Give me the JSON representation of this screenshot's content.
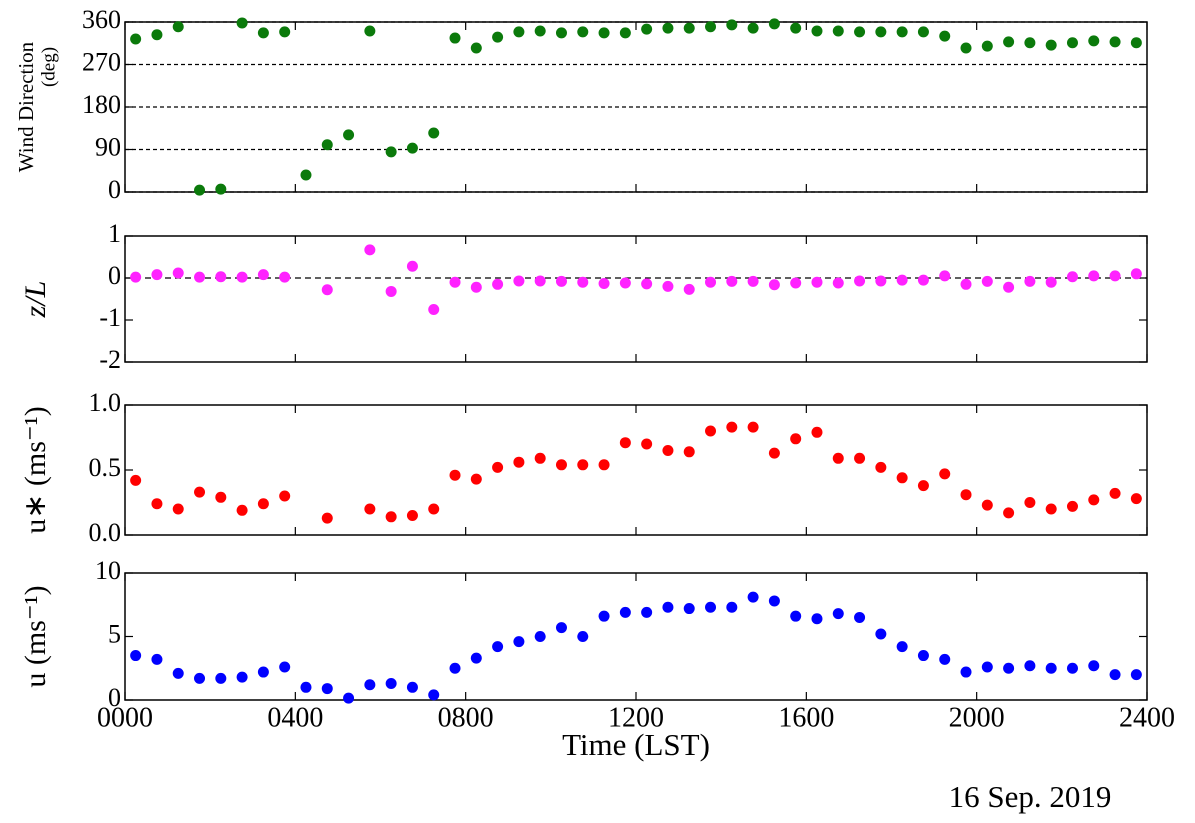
{
  "chart_data": [
    {
      "type": "scatter",
      "ylabel": "Wind Direction",
      "yunit": "(deg)",
      "color": "#0b7a0b",
      "grid": true,
      "x": [
        0.25,
        0.75,
        1.25,
        1.75,
        2.25,
        2.75,
        3.25,
        3.75,
        4.25,
        4.75,
        5.25,
        5.75,
        6.25,
        6.75,
        7.25,
        7.75,
        8.25,
        8.75,
        9.25,
        9.75,
        10.25,
        10.75,
        11.25,
        11.75,
        12.25,
        12.75,
        13.25,
        13.75,
        14.25,
        14.75,
        15.25,
        15.75,
        16.25,
        16.75,
        17.25,
        17.75,
        18.25,
        18.75,
        19.25,
        19.75,
        20.25,
        20.75,
        21.25,
        21.75,
        22.25,
        22.75,
        23.25,
        23.75
      ],
      "values": [
        324,
        333,
        350,
        4,
        6,
        358,
        337,
        339,
        36,
        100,
        121,
        341,
        85,
        93,
        125,
        326,
        305,
        328,
        339,
        341,
        337,
        339,
        337,
        337,
        345,
        347,
        347,
        350,
        354,
        347,
        356,
        347,
        341,
        341,
        339,
        339,
        339,
        339,
        330,
        305,
        309,
        318,
        316,
        311,
        316,
        320,
        318,
        316
      ],
      "xlim": [
        0,
        24
      ],
      "ylim": [
        0,
        360
      ],
      "yticks": [
        0,
        90,
        180,
        270,
        360
      ]
    },
    {
      "type": "scatter",
      "ylabel": "z/L",
      "color": "#ff22ff",
      "zero_line": true,
      "x": [
        0.25,
        0.75,
        1.25,
        1.75,
        2.25,
        2.75,
        3.25,
        3.75,
        4.25,
        4.75,
        5.25,
        5.75,
        6.25,
        6.75,
        7.25,
        7.75,
        8.25,
        8.75,
        9.25,
        9.75,
        10.25,
        10.75,
        11.25,
        11.75,
        12.25,
        12.75,
        13.25,
        13.75,
        14.25,
        14.75,
        15.25,
        15.75,
        16.25,
        16.75,
        17.25,
        17.75,
        18.25,
        18.75,
        19.25,
        19.75,
        20.25,
        20.75,
        21.25,
        21.75,
        22.25,
        22.75,
        23.25,
        23.75
      ],
      "values": [
        0.02,
        0.08,
        0.12,
        0.02,
        0.03,
        0.02,
        0.08,
        0.02,
        null,
        -0.28,
        null,
        0.67,
        -0.32,
        0.28,
        -0.75,
        -0.1,
        -0.22,
        -0.15,
        -0.07,
        -0.07,
        -0.08,
        -0.1,
        -0.13,
        -0.12,
        -0.14,
        -0.2,
        -0.27,
        -0.1,
        -0.08,
        -0.08,
        -0.16,
        -0.12,
        -0.1,
        -0.12,
        -0.07,
        -0.07,
        -0.05,
        -0.05,
        0.05,
        -0.15,
        -0.08,
        -0.22,
        -0.08,
        -0.1,
        0.03,
        0.05,
        0.05,
        0.1
      ],
      "xlim": [
        0,
        24
      ],
      "ylim": [
        -2,
        1
      ],
      "yticks": [
        -2,
        -1,
        0,
        1
      ]
    },
    {
      "type": "scatter",
      "ylabel": "u∗ (ms⁻¹)",
      "color": "#ff0000",
      "x": [
        0.25,
        0.75,
        1.25,
        1.75,
        2.25,
        2.75,
        3.25,
        3.75,
        4.25,
        4.75,
        5.25,
        5.75,
        6.25,
        6.75,
        7.25,
        7.75,
        8.25,
        8.75,
        9.25,
        9.75,
        10.25,
        10.75,
        11.25,
        11.75,
        12.25,
        12.75,
        13.25,
        13.75,
        14.25,
        14.75,
        15.25,
        15.75,
        16.25,
        16.75,
        17.25,
        17.75,
        18.25,
        18.75,
        19.25,
        19.75,
        20.25,
        20.75,
        21.25,
        21.75,
        22.25,
        22.75,
        23.25,
        23.75
      ],
      "values": [
        0.42,
        0.24,
        0.2,
        0.33,
        0.29,
        0.19,
        0.24,
        0.3,
        null,
        0.13,
        null,
        0.2,
        0.14,
        0.15,
        0.2,
        0.46,
        0.43,
        0.52,
        0.56,
        0.59,
        0.54,
        0.54,
        0.54,
        0.71,
        0.7,
        0.65,
        0.64,
        0.8,
        0.83,
        0.83,
        0.63,
        0.74,
        0.79,
        0.59,
        0.59,
        0.52,
        0.44,
        0.38,
        0.47,
        0.31,
        0.23,
        0.17,
        0.25,
        0.2,
        0.22,
        0.27,
        0.32,
        0.28
      ],
      "xlim": [
        0,
        24
      ],
      "ylim": [
        0,
        1
      ],
      "yticks": [
        {
          "value": 0,
          "label": "0.0"
        },
        {
          "value": 0.5,
          "label": "0.5"
        },
        {
          "value": 1,
          "label": "1.0"
        }
      ]
    },
    {
      "type": "scatter",
      "ylabel": "u (ms⁻¹)",
      "xlabel": "Time (LST)",
      "color": "#0000ff",
      "x": [
        0.25,
        0.75,
        1.25,
        1.75,
        2.25,
        2.75,
        3.25,
        3.75,
        4.25,
        4.75,
        5.25,
        5.75,
        6.25,
        6.75,
        7.25,
        7.75,
        8.25,
        8.75,
        9.25,
        9.75,
        10.25,
        10.75,
        11.25,
        11.75,
        12.25,
        12.75,
        13.25,
        13.75,
        14.25,
        14.75,
        15.25,
        15.75,
        16.25,
        16.75,
        17.25,
        17.75,
        18.25,
        18.75,
        19.25,
        19.75,
        20.25,
        20.75,
        21.25,
        21.75,
        22.25,
        22.75,
        23.25,
        23.75
      ],
      "values": [
        3.5,
        3.2,
        2.1,
        1.7,
        1.7,
        1.8,
        2.2,
        2.6,
        1.0,
        0.9,
        0.15,
        1.2,
        1.3,
        1.0,
        0.4,
        2.5,
        3.3,
        4.2,
        4.6,
        5.0,
        5.7,
        5.0,
        6.6,
        6.9,
        6.9,
        7.3,
        7.2,
        7.3,
        7.3,
        8.1,
        7.8,
        6.6,
        6.4,
        6.8,
        6.5,
        5.2,
        4.2,
        3.5,
        3.2,
        2.2,
        2.6,
        2.5,
        2.7,
        2.5,
        2.5,
        2.7,
        2.0,
        2.0
      ],
      "xlim": [
        0,
        24
      ],
      "ylim": [
        0,
        10
      ],
      "yticks": [
        0,
        5,
        10
      ],
      "xticks": [
        {
          "value": 0,
          "label": "0000"
        },
        {
          "value": 4,
          "label": "0400"
        },
        {
          "value": 8,
          "label": "0800"
        },
        {
          "value": 12,
          "label": "1200"
        },
        {
          "value": 16,
          "label": "1600"
        },
        {
          "value": 20,
          "label": "2000"
        },
        {
          "value": 24,
          "label": "2400"
        }
      ]
    }
  ],
  "date": "16 Sep. 2019"
}
